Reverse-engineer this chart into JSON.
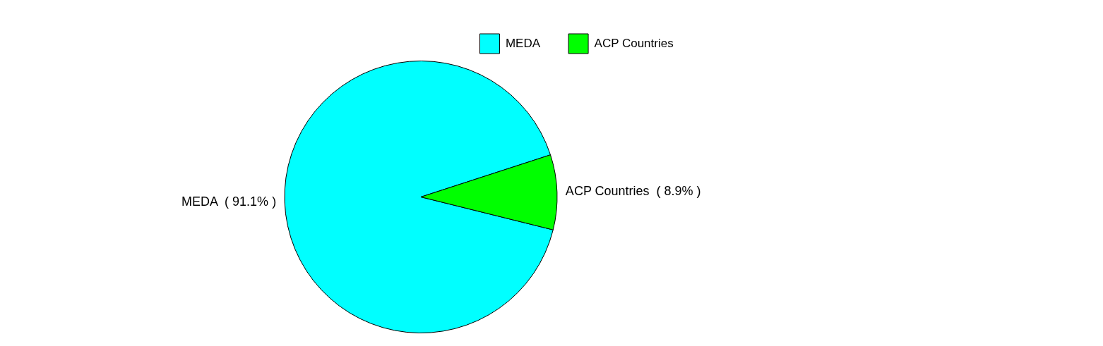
{
  "chart_data": {
    "type": "pie",
    "categories": [
      "MEDA",
      "ACP Countries"
    ],
    "values": [
      91.1,
      8.9
    ],
    "colors": [
      "#00ffff",
      "#00ff00"
    ],
    "value_labels": [
      "( 91.1% )",
      "( 8.9% )"
    ],
    "legend": "top right"
  }
}
